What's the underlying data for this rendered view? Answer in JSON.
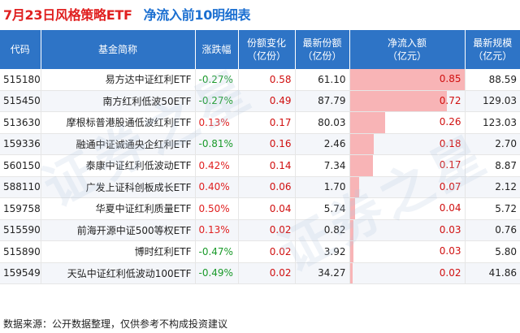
{
  "header": {
    "title": "7月23日风格策略ETF",
    "subtitle": "净流入前10明细表"
  },
  "columns": [
    "代码",
    "基金简称",
    "涨跌幅",
    "份额变化\n（亿份）",
    "最新份额\n（亿份）",
    "净流入额\n（亿元）",
    "最新规模\n（亿元）"
  ],
  "rows": [
    {
      "code": "515180",
      "name": "易方达中证红利ETF",
      "chg": "-0.27%",
      "share_chg": "0.58",
      "shares": "61.10",
      "inflow": "0.85",
      "inflow_value": 0.85,
      "scale": "88.59"
    },
    {
      "code": "515450",
      "name": "南方红利低波50ETF",
      "chg": "-0.27%",
      "share_chg": "0.49",
      "shares": "87.79",
      "inflow": "0.72",
      "inflow_value": 0.72,
      "scale": "129.03"
    },
    {
      "code": "513630",
      "name": "摩根标普港股通低波红利ETF",
      "chg": "0.13%",
      "share_chg": "0.17",
      "shares": "80.03",
      "inflow": "0.26",
      "inflow_value": 0.26,
      "scale": "123.03"
    },
    {
      "code": "159336",
      "name": "融通中证诚通央企红利ETF",
      "chg": "-0.81%",
      "share_chg": "0.16",
      "shares": "2.46",
      "inflow": "0.18",
      "inflow_value": 0.18,
      "scale": "2.70"
    },
    {
      "code": "560150",
      "name": "泰康中证红利低波动ETF",
      "chg": "0.42%",
      "share_chg": "0.14",
      "shares": "7.34",
      "inflow": "0.17",
      "inflow_value": 0.17,
      "scale": "8.87"
    },
    {
      "code": "588110",
      "name": "广发上证科创板成长ETF",
      "chg": "0.40%",
      "share_chg": "0.06",
      "shares": "1.70",
      "inflow": "0.07",
      "inflow_value": 0.07,
      "scale": "2.12"
    },
    {
      "code": "159758",
      "name": "华夏中证红利质量ETF",
      "chg": "0.50%",
      "share_chg": "0.04",
      "shares": "5.74",
      "inflow": "0.04",
      "inflow_value": 0.04,
      "scale": "5.72"
    },
    {
      "code": "515590",
      "name": "前海开源中证500等权ETF",
      "chg": "0.13%",
      "share_chg": "0.02",
      "shares": "0.82",
      "inflow": "0.03",
      "inflow_value": 0.03,
      "scale": "0.76"
    },
    {
      "code": "515890",
      "name": "博时红利ETF",
      "chg": "-0.47%",
      "share_chg": "0.02",
      "shares": "3.92",
      "inflow": "0.03",
      "inflow_value": 0.03,
      "scale": "5.80"
    },
    {
      "code": "159549",
      "name": "天弘中证红利低波动100ETF",
      "chg": "-0.49%",
      "share_chg": "0.02",
      "shares": "34.27",
      "inflow": "0.02",
      "inflow_value": 0.02,
      "scale": "41.86"
    }
  ],
  "colors": {
    "title": "#e02020",
    "subtitle": "#1b6fd1",
    "header_bg": "#2e74c6",
    "positive": "#e02020",
    "negative": "#1a9a2a",
    "bar": "#f8b4b6"
  },
  "footer": "数据来源：公开数据整理，仅供参考不构成投资建议"
}
